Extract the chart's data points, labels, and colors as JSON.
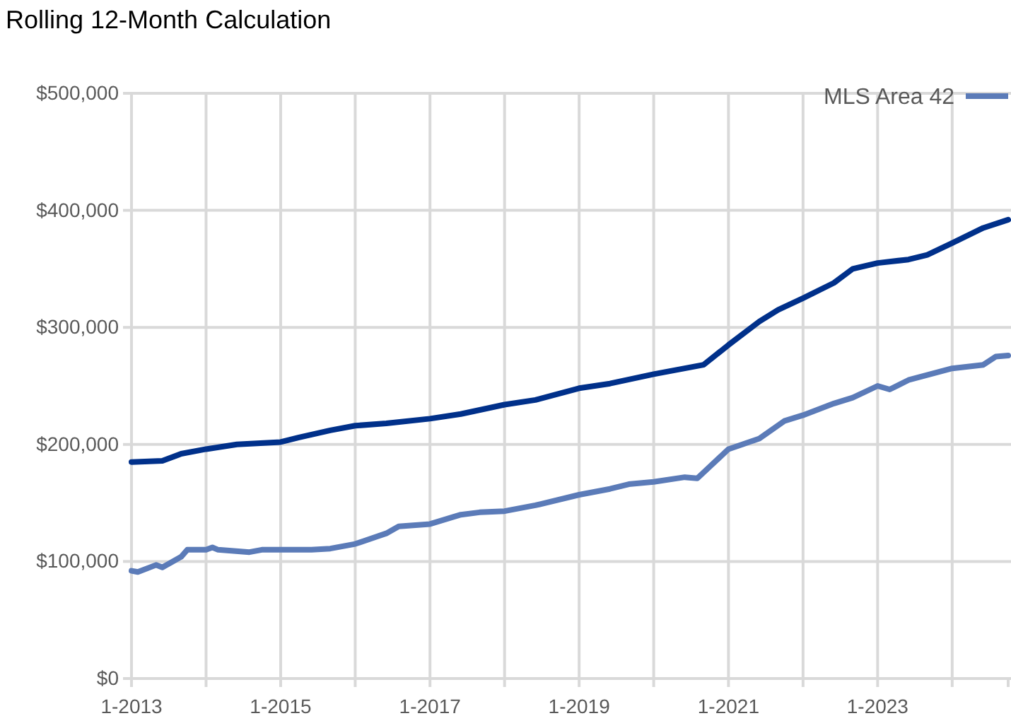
{
  "chart_data": {
    "type": "line",
    "title": "Rolling 12-Month Calculation",
    "xlim": [
      "2013-01",
      "2024-10"
    ],
    "xticks": [
      {
        "value": "2013-01",
        "label": "1-2013"
      },
      {
        "value": "2014-01",
        "label": null
      },
      {
        "value": "2015-01",
        "label": "1-2015"
      },
      {
        "value": "2016-01",
        "label": null
      },
      {
        "value": "2017-01",
        "label": "1-2017"
      },
      {
        "value": "2018-01",
        "label": null
      },
      {
        "value": "2019-01",
        "label": "1-2019"
      },
      {
        "value": "2020-01",
        "label": null
      },
      {
        "value": "2021-01",
        "label": "1-2021"
      },
      {
        "value": "2022-01",
        "label": null
      },
      {
        "value": "2023-01",
        "label": "1-2023"
      },
      {
        "value": "2024-01",
        "label": null
      }
    ],
    "ylim": [
      0,
      500000
    ],
    "yticks": [
      {
        "value": 0,
        "label": "$0"
      },
      {
        "value": 100000,
        "label": "$100,000"
      },
      {
        "value": 200000,
        "label": "$200,000"
      },
      {
        "value": 300000,
        "label": "$300,000"
      },
      {
        "value": 400000,
        "label": "$400,000"
      },
      {
        "value": 500000,
        "label": "$500,000"
      }
    ],
    "grid": true,
    "legend": "top right",
    "line_style": "solid",
    "marker": "none",
    "series": [
      {
        "color": "#00308a",
        "x": [
          "2013-01",
          "2013-06",
          "2013-09",
          "2014-01",
          "2014-06",
          "2015-01",
          "2015-04",
          "2015-09",
          "2016-01",
          "2016-06",
          "2017-01",
          "2017-06",
          "2018-01",
          "2018-06",
          "2019-01",
          "2019-06",
          "2020-01",
          "2020-06",
          "2020-09",
          "2021-01",
          "2021-06",
          "2021-09",
          "2022-01",
          "2022-06",
          "2022-09",
          "2023-01",
          "2023-06",
          "2023-09",
          "2024-01",
          "2024-06",
          "2024-10"
        ],
        "values": [
          185000,
          186000,
          192000,
          196000,
          200000,
          202000,
          206000,
          212000,
          216000,
          218000,
          222000,
          226000,
          234000,
          238000,
          248000,
          252000,
          260000,
          265000,
          268000,
          285000,
          305000,
          315000,
          325000,
          338000,
          350000,
          355000,
          358000,
          362000,
          372000,
          385000,
          392000
        ]
      },
      {
        "name": "MLS Area 42",
        "color": "#5b7bb8",
        "x": [
          "2013-01",
          "2013-02",
          "2013-05",
          "2013-06",
          "2013-09",
          "2013-10",
          "2014-01",
          "2014-02",
          "2014-03",
          "2014-08",
          "2014-10",
          "2015-06",
          "2015-09",
          "2016-01",
          "2016-06",
          "2016-08",
          "2017-01",
          "2017-06",
          "2017-09",
          "2018-01",
          "2018-06",
          "2019-01",
          "2019-06",
          "2019-09",
          "2020-01",
          "2020-06",
          "2020-08",
          "2021-01",
          "2021-06",
          "2021-10",
          "2022-01",
          "2022-06",
          "2022-09",
          "2023-01",
          "2023-03",
          "2023-06",
          "2024-01",
          "2024-06",
          "2024-08",
          "2024-10"
        ],
        "values": [
          92000,
          91000,
          97000,
          95000,
          104000,
          110000,
          110000,
          112000,
          110000,
          108000,
          110000,
          110000,
          111000,
          115000,
          124000,
          130000,
          132000,
          140000,
          142000,
          143000,
          148000,
          157000,
          162000,
          166000,
          168000,
          172000,
          171000,
          196000,
          205000,
          220000,
          225000,
          235000,
          240000,
          250000,
          247000,
          255000,
          265000,
          268000,
          275000,
          276000
        ]
      }
    ]
  }
}
